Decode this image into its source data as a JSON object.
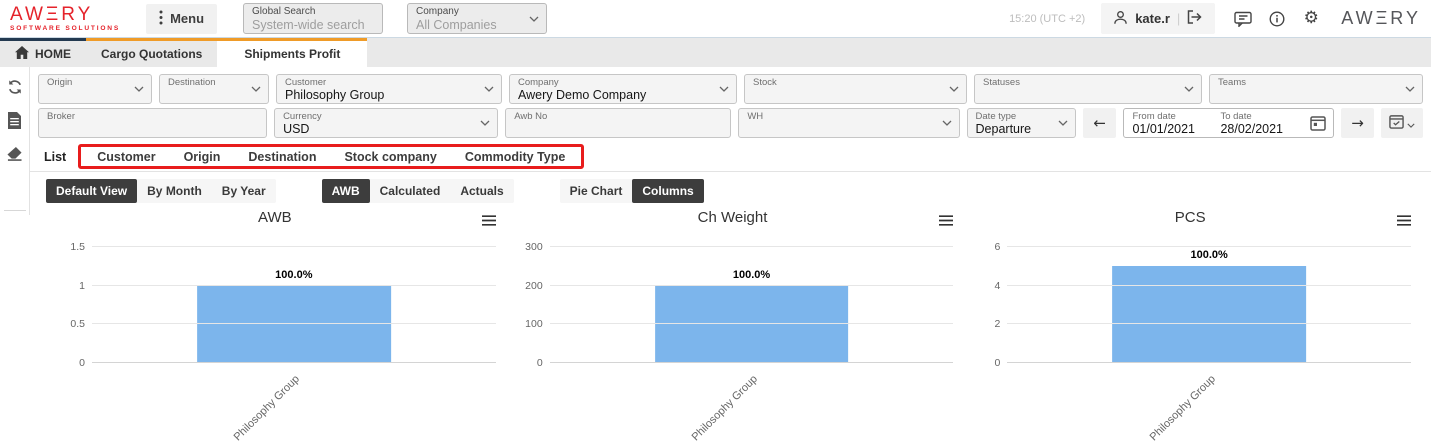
{
  "topbar": {
    "logo_main": "AWΞRY",
    "logo_sub": "SOFTWARE SOLUTIONS",
    "menu_label": "Menu",
    "global_search_label": "Global Search",
    "global_search_placeholder": "System-wide search",
    "company_label": "Company",
    "company_value": "All Companies",
    "time": "15:20 (UTC +2)",
    "username": "kate.r",
    "logo_right": "AWΞRY"
  },
  "tabs": {
    "home": "HOME",
    "cargo_quotations": "Cargo Quotations",
    "shipments_profit": "Shipments Profit"
  },
  "filters": {
    "origin": {
      "label": "Origin",
      "value": ""
    },
    "destination": {
      "label": "Destination",
      "value": ""
    },
    "customer": {
      "label": "Customer",
      "value": "Philosophy Group"
    },
    "company": {
      "label": "Company",
      "value": "Awery Demo Company"
    },
    "stock": {
      "label": "Stock",
      "value": ""
    },
    "statuses": {
      "label": "Statuses",
      "value": ""
    },
    "teams": {
      "label": "Teams",
      "value": ""
    },
    "broker": {
      "label": "Broker",
      "value": ""
    },
    "currency": {
      "label": "Currency",
      "value": "USD"
    },
    "awb_no": {
      "label": "Awb No",
      "value": ""
    },
    "wh": {
      "label": "WH",
      "value": ""
    },
    "date_type": {
      "label": "Date type",
      "value": "Departure"
    },
    "from_date": {
      "label": "From date",
      "value": "01/01/2021"
    },
    "to_date": {
      "label": "To date",
      "value": "28/02/2021"
    }
  },
  "group_tabs": {
    "list": "List",
    "items": [
      "Customer",
      "Origin",
      "Destination",
      "Stock company",
      "Commodity Type"
    ]
  },
  "view_controls": {
    "group1": [
      "Default View",
      "By Month",
      "By Year"
    ],
    "group2": [
      "AWB",
      "Calculated",
      "Actuals"
    ],
    "group3": [
      "Pie Chart",
      "Columns"
    ],
    "selected": [
      "Default View",
      "AWB",
      "Columns"
    ]
  },
  "chart_data": [
    {
      "type": "bar",
      "title": "AWB",
      "categories": [
        "Philosophy Group"
      ],
      "values": [
        1
      ],
      "data_labels": [
        "100.0%"
      ],
      "yticks": [
        0,
        0.5,
        1,
        1.5
      ],
      "ylim": [
        0,
        1.5
      ],
      "grid": true,
      "legend": false,
      "bar_color": "#7cb5ec"
    },
    {
      "type": "bar",
      "title": "Ch Weight",
      "categories": [
        "Philosophy Group"
      ],
      "values": [
        200
      ],
      "data_labels": [
        "100.0%"
      ],
      "yticks": [
        0,
        100,
        200,
        300
      ],
      "ylim": [
        0,
        300
      ],
      "grid": true,
      "legend": false,
      "bar_color": "#7cb5ec"
    },
    {
      "type": "bar",
      "title": "PCS",
      "categories": [
        "Philosophy Group"
      ],
      "values": [
        5
      ],
      "data_labels": [
        "100.0%"
      ],
      "yticks": [
        0,
        2,
        4,
        6
      ],
      "ylim": [
        0,
        6
      ],
      "grid": true,
      "legend": false,
      "bar_color": "#7cb5ec"
    }
  ],
  "icons": {
    "gear": "⚙",
    "arrow_left": "←",
    "arrow_right": "→"
  },
  "colors": {
    "brand_red": "#e5232b",
    "tab_orange": "#ef9b28",
    "home_navy": "#233950",
    "bar_blue": "#7cb5ec",
    "chip_dark": "#3d3d3d",
    "annotation_red": "#e81c1c"
  }
}
